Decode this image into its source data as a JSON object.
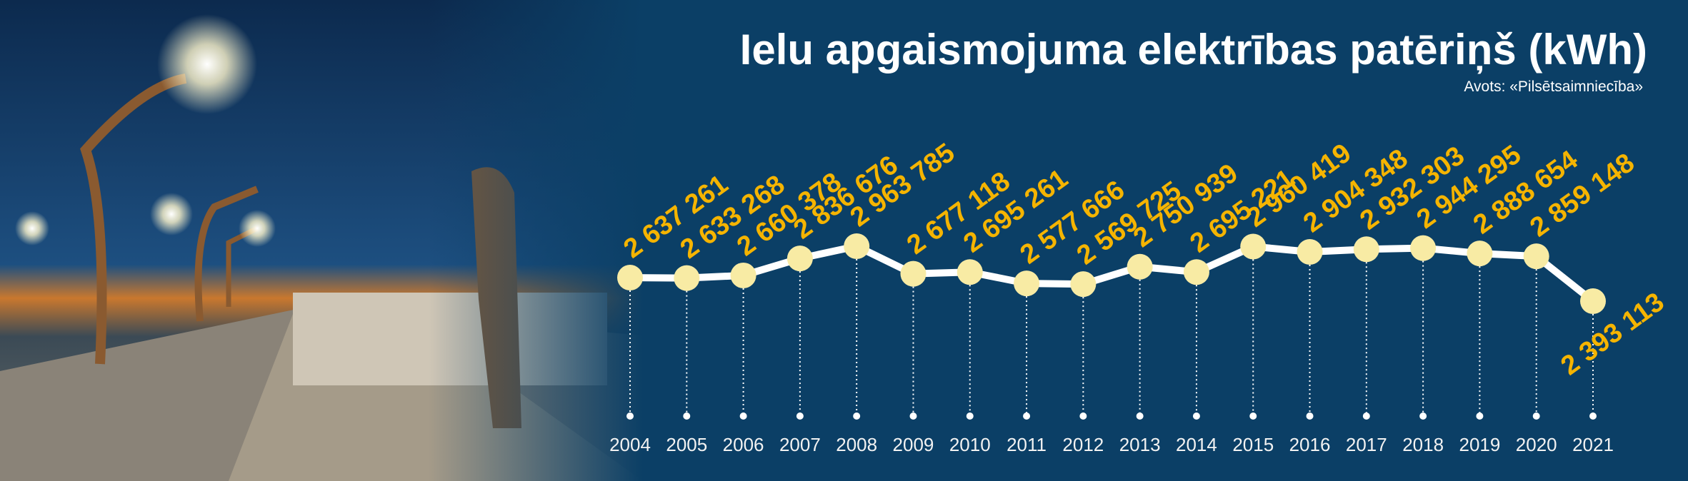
{
  "chart_data": {
    "type": "line",
    "title": "Ielu apgaismojuma elektrības patēriņš (kWh)",
    "subtitle": "Avots: «Pilsētsaimniecība»",
    "categories": [
      "2004",
      "2005",
      "2006",
      "2007",
      "2008",
      "2009",
      "2010",
      "2011",
      "2012",
      "2013",
      "2014",
      "2015",
      "2016",
      "2017",
      "2018",
      "2019",
      "2020",
      "2021"
    ],
    "values": [
      2637261,
      2633268,
      2660378,
      2836676,
      2963785,
      2677118,
      2695261,
      2577666,
      2569725,
      2750939,
      2695221,
      2960419,
      2904348,
      2932303,
      2944295,
      2888654,
      2859148,
      2393113
    ],
    "value_labels": [
      "2 637 261",
      "2 633 268",
      "2 660 378",
      "2 836 676",
      "2 963 785",
      "2 677 118",
      "2 695 261",
      "2 577 666",
      "2 569 725",
      "2 750 939",
      "2 695 221",
      "2 960 419",
      "2 904 348",
      "2 932 303",
      "2 944 295",
      "2 888 654",
      "2 859 148",
      "2 393 113"
    ],
    "color": "#ffffff",
    "marker_color": "#f8eba4",
    "label_color": "#f5b400"
  }
}
